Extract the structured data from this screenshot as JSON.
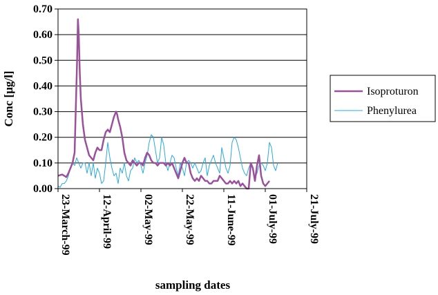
{
  "chart_data": {
    "type": "line",
    "xlabel": "sampling dates",
    "ylabel": "Conc [µg/l]",
    "ylim": [
      0,
      0.7
    ],
    "x_tick_labels": [
      "23-March-99",
      "12-April-99",
      "02-May-99",
      "22-May-99",
      "11-June-99",
      "01-July-99",
      "21-July-99"
    ],
    "x_tick_days": [
      0,
      20,
      40,
      60,
      80,
      100,
      120
    ],
    "y_tick_labels": [
      "0.00",
      "0.10",
      "0.20",
      "0.30",
      "0.40",
      "0.50",
      "0.60",
      "0.70"
    ],
    "y_tick_values": [
      0,
      0.1,
      0.2,
      0.3,
      0.4,
      0.5,
      0.6,
      0.7
    ],
    "grid": "horizontal",
    "legend_position": "right",
    "series": [
      {
        "name": "Isoproturon",
        "color": "#9b509b",
        "x": [
          0,
          2,
          3,
          4,
          5,
          6,
          7,
          8,
          8.7,
          9.2,
          9.6,
          10,
          10.5,
          11,
          11.5,
          12,
          12.5,
          13,
          14,
          15,
          16,
          17,
          18,
          19,
          20,
          21,
          22,
          23,
          24,
          25,
          26,
          27,
          28,
          28.5,
          29,
          30,
          31,
          32,
          33,
          34,
          35,
          36,
          37,
          38,
          39,
          40,
          41,
          42,
          43,
          44,
          45,
          46,
          47,
          48,
          49,
          50,
          51,
          52,
          53,
          54,
          55,
          56,
          57,
          58,
          59,
          60,
          61,
          62,
          63,
          64,
          65,
          66,
          67,
          68,
          69,
          70,
          71,
          72,
          73,
          74,
          75,
          76,
          77,
          78,
          79,
          80,
          81,
          82,
          83,
          84,
          85,
          86,
          87,
          88,
          89,
          90,
          91,
          92,
          93,
          94,
          95,
          96,
          97,
          98,
          99,
          100,
          101,
          102
        ],
        "values": [
          0.05,
          0.055,
          0.05,
          0.045,
          0.06,
          0.08,
          0.1,
          0.14,
          0.35,
          0.5,
          0.66,
          0.6,
          0.45,
          0.35,
          0.3,
          0.25,
          0.22,
          0.19,
          0.16,
          0.13,
          0.12,
          0.11,
          0.14,
          0.16,
          0.15,
          0.15,
          0.19,
          0.22,
          0.23,
          0.22,
          0.25,
          0.28,
          0.3,
          0.29,
          0.27,
          0.24,
          0.2,
          0.14,
          0.11,
          0.1,
          0.09,
          0.11,
          0.1,
          0.09,
          0.1,
          0.1,
          0.09,
          0.12,
          0.14,
          0.13,
          0.11,
          0.1,
          0.1,
          0.09,
          0.1,
          0.1,
          0.1,
          0.09,
          0.1,
          0.09,
          0.1,
          0.08,
          0.06,
          0.04,
          0.07,
          0.1,
          0.12,
          0.1,
          0.1,
          0.06,
          0.04,
          0.03,
          0.04,
          0.03,
          0.05,
          0.04,
          0.03,
          0.03,
          0.02,
          0.02,
          0.03,
          0.03,
          0.03,
          0.05,
          0.04,
          0.03,
          0.02,
          0.02,
          0.03,
          0.02,
          0.03,
          0.02,
          0.03,
          0.01,
          0.02,
          0.01,
          0.0,
          0.0,
          0.1,
          0.08,
          0.03,
          0.09,
          0.13,
          0.05,
          0.02,
          0.01,
          0.02,
          0.03
        ]
      },
      {
        "name": "Phenylurea",
        "color": "#29a8e0",
        "x": [
          0,
          1,
          2,
          3,
          4,
          5,
          6,
          7,
          8,
          9,
          10,
          11,
          12,
          13,
          14,
          15,
          16,
          17,
          18,
          19,
          20,
          21,
          22,
          23,
          24,
          25,
          26,
          27,
          28,
          29,
          30,
          31,
          32,
          33,
          34,
          35,
          36,
          37,
          38,
          39,
          40,
          41,
          42,
          43,
          44,
          45,
          46,
          47,
          48,
          49,
          50,
          51,
          52,
          53,
          54,
          55,
          56,
          57,
          58,
          59,
          60,
          61,
          62,
          63,
          64,
          65,
          66,
          67,
          68,
          69,
          70,
          71,
          72,
          73,
          74,
          75,
          76,
          77,
          78,
          79,
          80,
          81,
          82,
          83,
          84,
          85,
          86,
          87,
          88,
          89,
          90,
          91,
          92,
          93,
          94,
          95,
          96,
          97,
          98,
          99,
          100,
          101,
          102,
          103,
          104,
          105,
          106
        ],
        "values": [
          0.01,
          0.005,
          0.02,
          0.02,
          0.03,
          0.05,
          0.08,
          0.1,
          0.09,
          0.12,
          0.1,
          0.08,
          0.1,
          0.1,
          0.06,
          0.1,
          0.05,
          0.1,
          0.04,
          0.08,
          0.06,
          0.02,
          0.03,
          0.1,
          0.18,
          0.12,
          0.08,
          0.05,
          0.06,
          0.02,
          0.08,
          0.06,
          0.1,
          0.05,
          0.03,
          0.07,
          0.08,
          0.12,
          0.1,
          0.11,
          0.09,
          0.06,
          0.1,
          0.13,
          0.18,
          0.21,
          0.2,
          0.15,
          0.1,
          0.12,
          0.2,
          0.17,
          0.1,
          0.07,
          0.1,
          0.13,
          0.12,
          0.08,
          0.05,
          0.1,
          0.08,
          0.05,
          0.1,
          0.11,
          0.1,
          0.08,
          0.1,
          0.08,
          0.06,
          0.07,
          0.1,
          0.12,
          0.05,
          0.09,
          0.11,
          0.13,
          0.1,
          0.08,
          0.06,
          0.16,
          0.12,
          0.08,
          0.06,
          0.09,
          0.18,
          0.2,
          0.19,
          0.16,
          0.12,
          0.08,
          0.06,
          0.05,
          0.08,
          0.1,
          0.07,
          0.04,
          0.06,
          0.09,
          0.1,
          0.09,
          0.07,
          0.1,
          0.18,
          0.16,
          0.09,
          0.07,
          0.1
        ]
      }
    ]
  }
}
